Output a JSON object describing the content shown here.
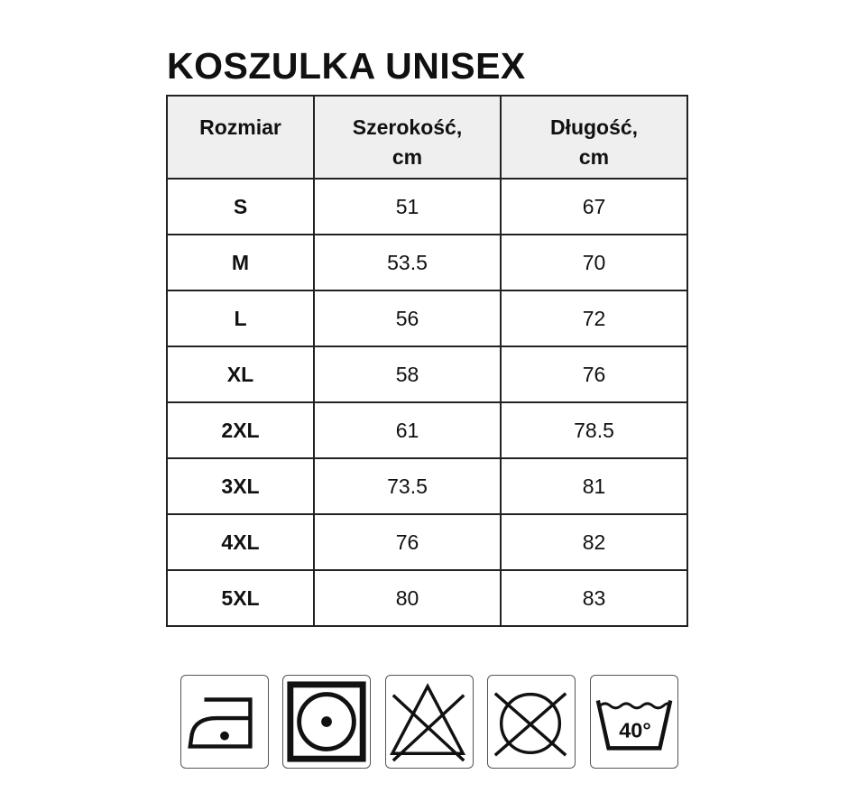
{
  "title": "KOSZULKA UNISEX",
  "table": {
    "headers": [
      "Rozmiar",
      "Szerokość,\ncm",
      "Długość,\ncm"
    ],
    "header_lines": [
      [
        "Rozmiar"
      ],
      [
        "Szerokość,",
        "cm"
      ],
      [
        "Długość,",
        "cm"
      ]
    ],
    "rows": [
      [
        "S",
        "51",
        "67"
      ],
      [
        "M",
        "53.5",
        "70"
      ],
      [
        "L",
        "56",
        "72"
      ],
      [
        "XL",
        "58",
        "76"
      ],
      [
        "2XL",
        "61",
        "78.5"
      ],
      [
        "3XL",
        "73.5",
        "81"
      ],
      [
        "4XL",
        "76",
        "82"
      ],
      [
        "5XL",
        "80",
        "83"
      ]
    ],
    "header_bg": "#efefef"
  },
  "care_icons": [
    {
      "name": "iron-low-temperature-icon"
    },
    {
      "name": "tumble-dry-icon"
    },
    {
      "name": "do-not-bleach-icon"
    },
    {
      "name": "do-not-dry-clean-icon"
    },
    {
      "name": "wash-40-icon",
      "label": "40°"
    }
  ]
}
